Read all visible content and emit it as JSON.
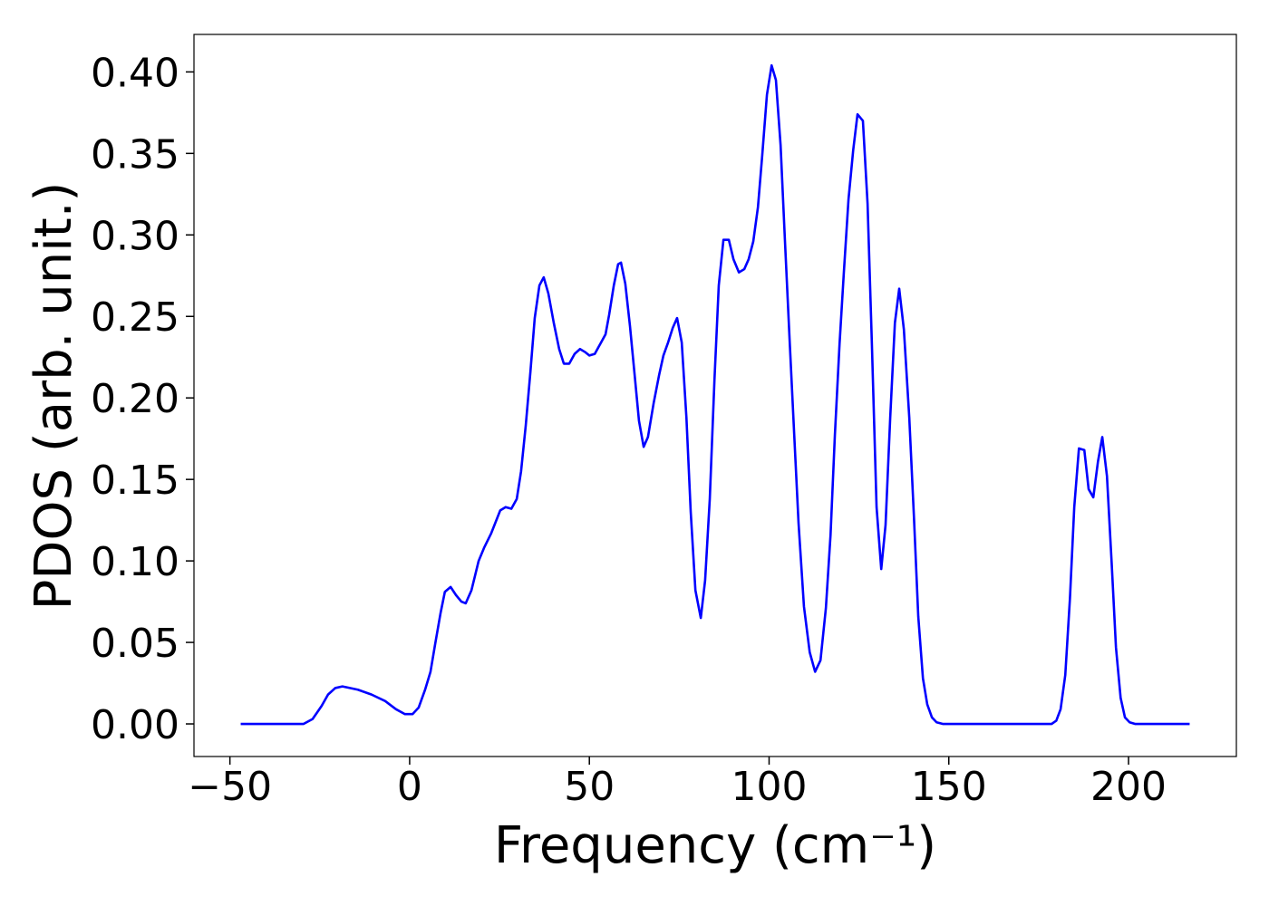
{
  "chart_data": {
    "type": "line",
    "xlabel": "Frequency (cm⁻¹)",
    "ylabel": "PDOS (arb. unit.)",
    "xlim": [
      -60,
      230
    ],
    "ylim": [
      -0.02,
      0.423
    ],
    "xticks": [
      {
        "value": -50,
        "label": "−50"
      },
      0,
      50,
      100,
      150,
      200
    ],
    "yticks": [
      {
        "value": 0,
        "label": "0.00"
      },
      {
        "value": 0.05,
        "label": "0.05"
      },
      {
        "value": 0.1,
        "label": "0.10"
      },
      {
        "value": 0.15,
        "label": "0.15"
      },
      {
        "value": 0.2,
        "label": "0.20"
      },
      {
        "value": 0.25,
        "label": "0.25"
      },
      {
        "value": 0.3,
        "label": "0.30"
      },
      {
        "value": 0.35,
        "label": "0.35"
      },
      {
        "value": 0.4,
        "label": "0.40"
      }
    ],
    "grid": false,
    "series": [
      {
        "color": "#0000ff",
        "x": [
          -47,
          -29.5,
          -27,
          -24.5,
          -22.7,
          -20.7,
          -18.7,
          -14.4,
          -10.6,
          -6.8,
          -3.8,
          -1.3,
          0.8,
          2.5,
          4.3,
          5.8,
          7.1,
          8.6,
          9.8,
          11.4,
          12.9,
          14.4,
          15.6,
          17.2,
          19.2,
          20.7,
          22.7,
          25.2,
          26.7,
          28.3,
          29.8,
          31.0,
          32.3,
          33.6,
          34.8,
          36.1,
          37.3,
          38.6,
          40.1,
          41.6,
          42.9,
          44.4,
          45.9,
          47.4,
          48.9,
          50.0,
          51.5,
          53.0,
          54.5,
          55.5,
          56.8,
          58.0,
          58.8,
          60.0,
          61.3,
          62.6,
          63.8,
          65.1,
          66.3,
          67.9,
          69.4,
          70.6,
          71.9,
          73.2,
          74.4,
          75.7,
          77.0,
          78.2,
          79.5,
          81.0,
          82.2,
          83.5,
          84.8,
          86.0,
          87.3,
          88.8,
          90.1,
          91.6,
          93.1,
          94.3,
          95.6,
          96.9,
          98.1,
          99.4,
          100.7,
          101.9,
          103.2,
          104.4,
          105.7,
          107.0,
          108.2,
          109.7,
          111.3,
          112.8,
          114.3,
          115.8,
          117.1,
          118.3,
          119.6,
          120.8,
          122.1,
          123.4,
          124.6,
          126.1,
          127.4,
          128.6,
          129.9,
          131.2,
          132.4,
          133.7,
          135.0,
          136.2,
          137.5,
          139.0,
          140.3,
          141.5,
          142.8,
          144.0,
          145.3,
          146.6,
          148.3,
          178.6,
          179.9,
          181.1,
          182.4,
          183.7,
          184.9,
          186.2,
          187.7,
          188.9,
          190.2,
          191.5,
          192.7,
          194.0,
          195.3,
          196.5,
          197.8,
          199.0,
          200.3,
          201.8,
          217
        ],
        "values": [
          0,
          0,
          0.003,
          0.011,
          0.018,
          0.022,
          0.023,
          0.021,
          0.018,
          0.014,
          0.009,
          0.006,
          0.006,
          0.01,
          0.021,
          0.032,
          0.049,
          0.068,
          0.081,
          0.084,
          0.079,
          0.075,
          0.074,
          0.082,
          0.1,
          0.108,
          0.117,
          0.131,
          0.133,
          0.132,
          0.138,
          0.155,
          0.183,
          0.216,
          0.249,
          0.269,
          0.274,
          0.264,
          0.246,
          0.23,
          0.221,
          0.221,
          0.227,
          0.23,
          0.228,
          0.226,
          0.227,
          0.233,
          0.239,
          0.251,
          0.269,
          0.282,
          0.283,
          0.27,
          0.244,
          0.214,
          0.186,
          0.17,
          0.176,
          0.197,
          0.214,
          0.226,
          0.234,
          0.243,
          0.249,
          0.234,
          0.188,
          0.13,
          0.082,
          0.065,
          0.088,
          0.138,
          0.211,
          0.269,
          0.297,
          0.297,
          0.285,
          0.277,
          0.279,
          0.285,
          0.296,
          0.317,
          0.349,
          0.386,
          0.404,
          0.395,
          0.355,
          0.297,
          0.236,
          0.177,
          0.123,
          0.072,
          0.044,
          0.032,
          0.039,
          0.071,
          0.116,
          0.177,
          0.233,
          0.277,
          0.322,
          0.352,
          0.374,
          0.37,
          0.319,
          0.233,
          0.133,
          0.095,
          0.122,
          0.188,
          0.246,
          0.267,
          0.242,
          0.188,
          0.127,
          0.066,
          0.028,
          0.012,
          0.004,
          0.001,
          0,
          0,
          0.002,
          0.009,
          0.03,
          0.077,
          0.133,
          0.169,
          0.168,
          0.144,
          0.139,
          0.161,
          0.176,
          0.152,
          0.099,
          0.047,
          0.016,
          0.004,
          0.001,
          0,
          0
        ]
      }
    ]
  }
}
